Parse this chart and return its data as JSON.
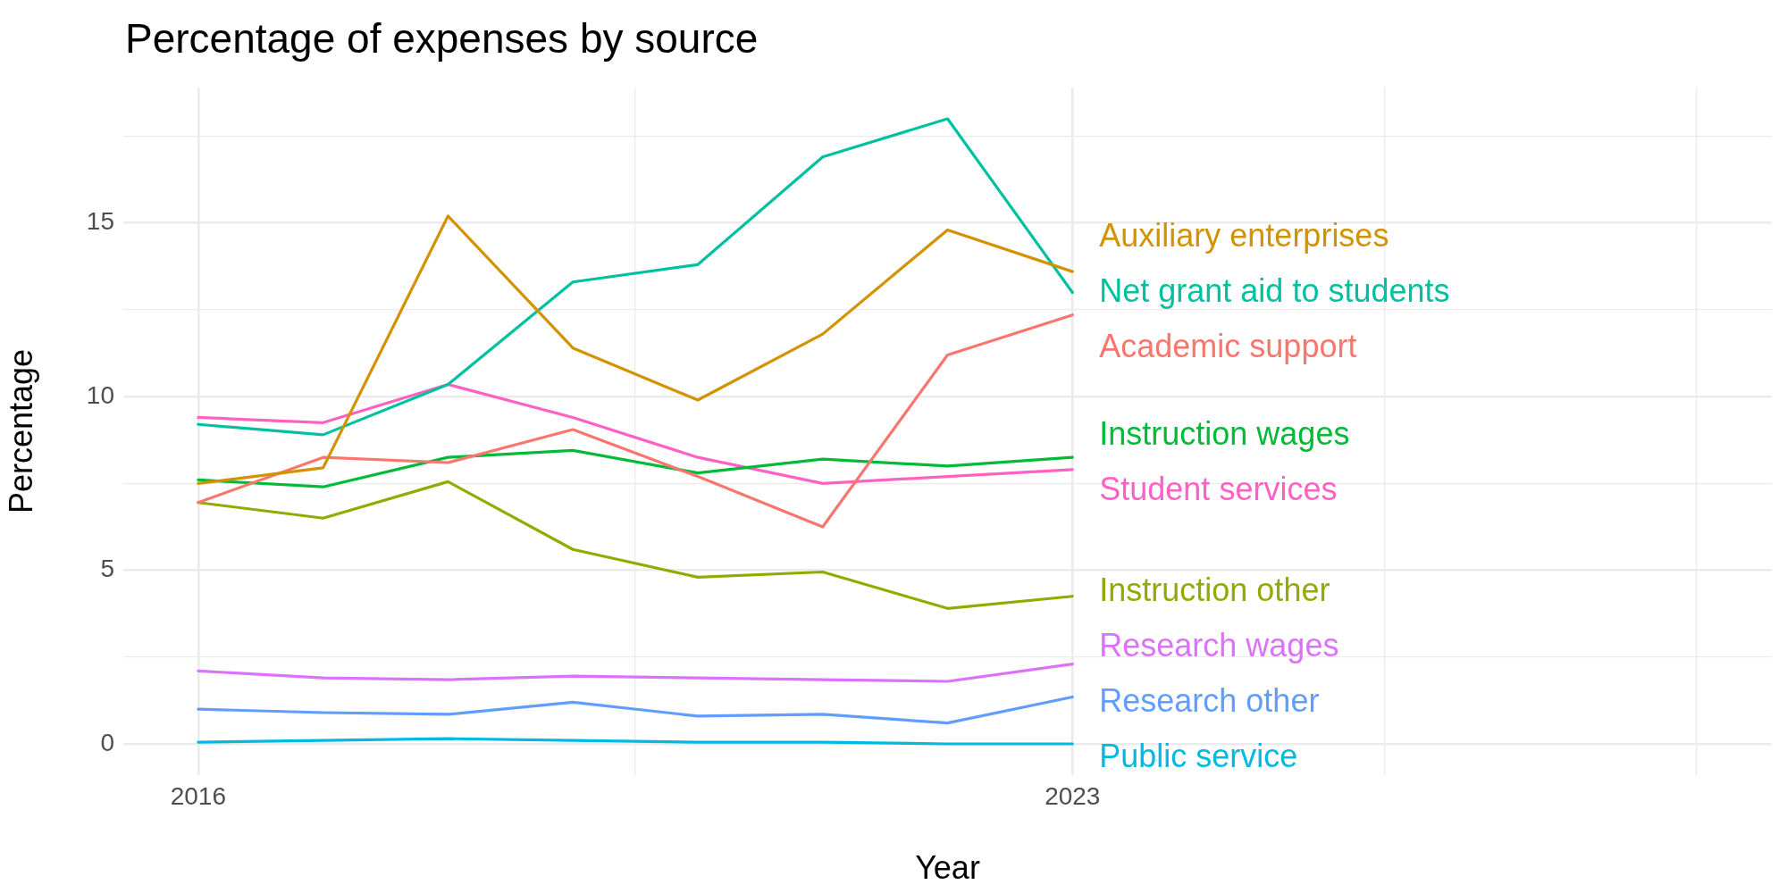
{
  "chart_data": {
    "type": "line",
    "title": "Percentage of expenses by source",
    "xlabel": "Year",
    "ylabel": "Percentage",
    "x": [
      2016,
      2017,
      2018,
      2019,
      2020,
      2021,
      2022,
      2023
    ],
    "xlim": [
      2015.4,
      2028.6
    ],
    "xticks": [
      2016,
      {
        "value": 2019.5,
        "label": null
      },
      2023,
      {
        "value": 2025.5,
        "label": null
      },
      {
        "value": 2028,
        "label": null
      }
    ],
    "ylim": [
      -0.9,
      18.9
    ],
    "yticks": [
      0,
      {
        "value": 2.5,
        "label": null
      },
      5,
      {
        "value": 7.5,
        "label": null
      },
      10,
      {
        "value": 12.5,
        "label": null
      },
      15,
      {
        "value": 17.5,
        "label": null
      }
    ],
    "grid": true,
    "legend": false,
    "marker": "none",
    "line_style": "solid",
    "series": [
      {
        "name": "Auxiliary enterprises",
        "color": "#d39200",
        "values": [
          7.5,
          7.95,
          15.2,
          11.4,
          9.9,
          11.8,
          14.8,
          13.6
        ]
      },
      {
        "name": "Net grant aid to students",
        "color": "#00c19f",
        "values": [
          9.2,
          8.9,
          10.35,
          13.3,
          13.8,
          16.9,
          18.0,
          13.0
        ]
      },
      {
        "name": "Academic support",
        "color": "#f8766d",
        "values": [
          6.95,
          8.25,
          8.1,
          9.05,
          7.7,
          6.25,
          11.2,
          12.35
        ]
      },
      {
        "name": "Instruction wages",
        "color": "#00ba38",
        "values": [
          7.6,
          7.4,
          8.25,
          8.45,
          7.8,
          8.2,
          8.0,
          8.25
        ]
      },
      {
        "name": "Student services",
        "color": "#ff61c3",
        "values": [
          9.4,
          9.25,
          10.35,
          9.4,
          8.25,
          7.5,
          7.7,
          7.9
        ]
      },
      {
        "name": "Instruction other",
        "color": "#93aa00",
        "values": [
          6.95,
          6.5,
          7.55,
          5.6,
          4.8,
          4.95,
          3.9,
          4.25
        ]
      },
      {
        "name": "Research wages",
        "color": "#db72fb",
        "values": [
          2.1,
          1.9,
          1.85,
          1.95,
          1.9,
          1.85,
          1.8,
          2.3
        ]
      },
      {
        "name": "Research other",
        "color": "#619cff",
        "values": [
          1.0,
          0.9,
          0.85,
          1.2,
          0.8,
          0.85,
          0.6,
          1.35
        ]
      },
      {
        "name": "Public service",
        "color": "#00b9e3",
        "values": [
          0.05,
          0.1,
          0.15,
          0.1,
          0.05,
          0.05,
          0.0,
          0.0
        ]
      }
    ]
  }
}
